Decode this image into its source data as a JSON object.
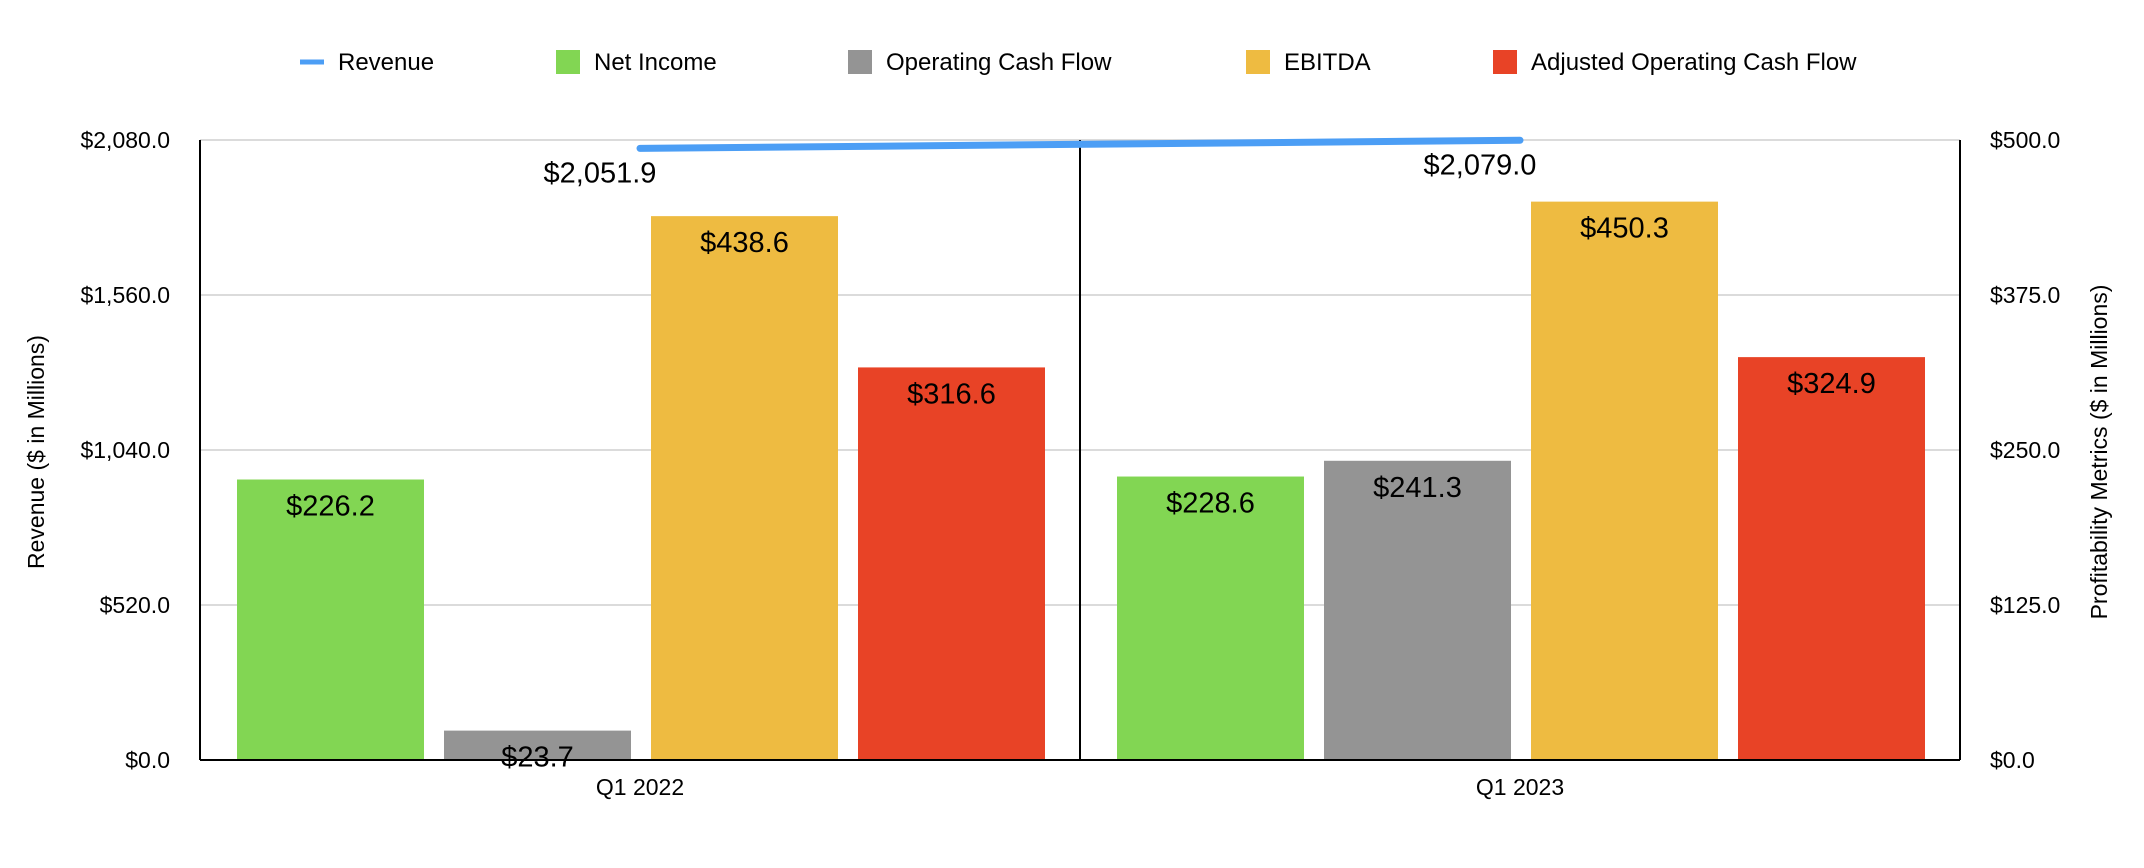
{
  "chart_data": {
    "type": "bar",
    "categories": [
      "Q1 2022",
      "Q1 2023"
    ],
    "series": [
      {
        "name": "Revenue",
        "kind": "line",
        "axis": "left",
        "color": "#4C9EF5",
        "values": [
          2051.9,
          2079.0
        ],
        "labels": [
          "$2,051.9",
          "$2,079.0"
        ]
      },
      {
        "name": "Net Income",
        "kind": "bar",
        "axis": "right",
        "color": "#82D653",
        "values": [
          226.2,
          228.6
        ],
        "labels": [
          "$226.2",
          "$228.6"
        ]
      },
      {
        "name": "Operating Cash Flow",
        "kind": "bar",
        "axis": "right",
        "color": "#949494",
        "values": [
          23.7,
          241.3
        ],
        "labels": [
          "$23.7",
          "$241.3"
        ]
      },
      {
        "name": "EBITDA",
        "kind": "bar",
        "axis": "right",
        "color": "#EEBB41",
        "values": [
          438.6,
          450.3
        ],
        "labels": [
          "$438.6",
          "$450.3"
        ]
      },
      {
        "name": "Adjusted Operating Cash Flow",
        "kind": "bar",
        "axis": "right",
        "color": "#E84326",
        "values": [
          316.6,
          324.9
        ],
        "labels": [
          "$316.6",
          "$324.9"
        ]
      }
    ],
    "ylabel": "Revenue ($ in Millions)",
    "y2label": "Profitability Metrics ($ in Millions)",
    "ylim": [
      0,
      2080
    ],
    "y2lim": [
      0,
      500
    ],
    "yticks": [
      0,
      520,
      1040,
      1560,
      2080
    ],
    "ytick_labels": [
      "$0.0",
      "$520.0",
      "$1,040.0",
      "$1,560.0",
      "$2,080.0"
    ],
    "y2ticks": [
      0,
      125,
      250,
      375,
      500
    ],
    "y2tick_labels": [
      "$0.0",
      "$125.0",
      "$250.0",
      "$375.0",
      "$500.0"
    ],
    "grid": true,
    "legend_position": "top"
  }
}
